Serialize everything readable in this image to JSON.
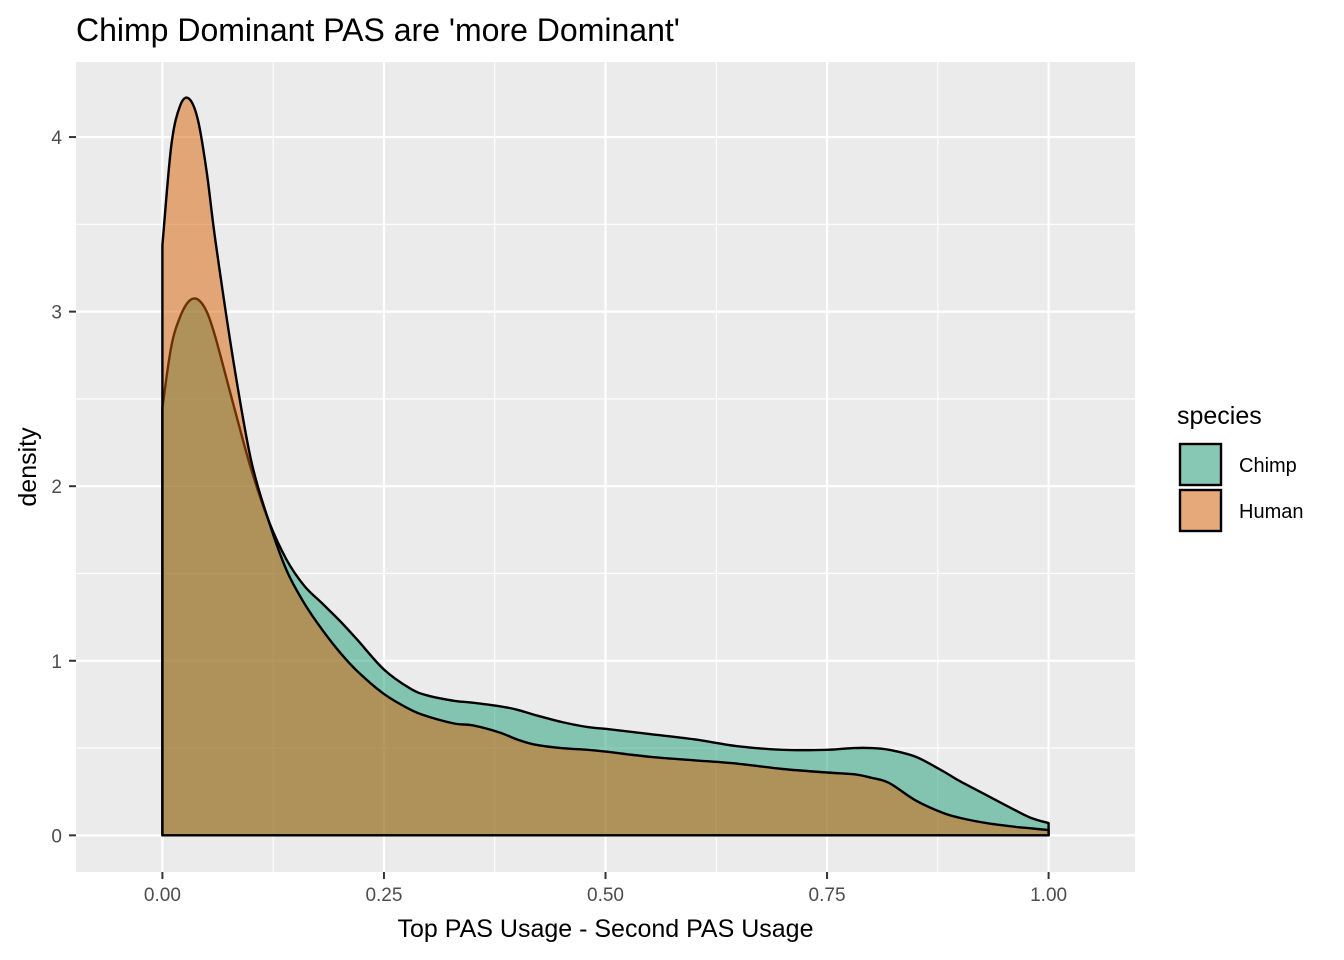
{
  "chart_data": {
    "type": "area",
    "title": "Chimp Dominant PAS are 'more Dominant'",
    "xlabel": "Top PAS Usage - Second PAS Usage",
    "ylabel": "density",
    "xlim": [
      -0.0975,
      1.0975
    ],
    "ylim": [
      -0.21,
      4.43
    ],
    "x_ticks": [
      0,
      0.25,
      0.5,
      0.75,
      1
    ],
    "x_tick_labels": [
      "0.00",
      "0.25",
      "0.50",
      "0.75",
      "1.00"
    ],
    "y_ticks": [
      0,
      1,
      2,
      3,
      4
    ],
    "y_tick_labels": [
      "0",
      "1",
      "2",
      "3",
      "4"
    ],
    "grid": true,
    "legend": {
      "title": "species",
      "position": "right"
    },
    "series": [
      {
        "name": "Chimp",
        "color": "#1b9e77",
        "x": [
          0,
          0.01,
          0.02,
          0.03,
          0.04,
          0.05,
          0.06,
          0.08,
          0.1,
          0.12,
          0.14,
          0.16,
          0.18,
          0.2,
          0.22,
          0.25,
          0.28,
          0.3,
          0.33,
          0.35,
          0.38,
          0.4,
          0.42,
          0.45,
          0.48,
          0.5,
          0.55,
          0.6,
          0.65,
          0.7,
          0.75,
          0.78,
          0.8,
          0.82,
          0.85,
          0.88,
          0.9,
          0.93,
          0.96,
          0.98,
          1.0
        ],
        "y": [
          2.45,
          2.8,
          2.97,
          3.06,
          3.07,
          3.0,
          2.85,
          2.47,
          2.1,
          1.8,
          1.58,
          1.43,
          1.33,
          1.23,
          1.12,
          0.95,
          0.84,
          0.8,
          0.77,
          0.76,
          0.74,
          0.72,
          0.69,
          0.65,
          0.62,
          0.61,
          0.58,
          0.55,
          0.51,
          0.49,
          0.49,
          0.5,
          0.5,
          0.49,
          0.45,
          0.37,
          0.31,
          0.23,
          0.15,
          0.1,
          0.07
        ]
      },
      {
        "name": "Human",
        "color": "#d95f02",
        "x": [
          0,
          0.01,
          0.02,
          0.03,
          0.04,
          0.05,
          0.06,
          0.08,
          0.1,
          0.12,
          0.14,
          0.16,
          0.18,
          0.2,
          0.22,
          0.25,
          0.28,
          0.3,
          0.33,
          0.35,
          0.38,
          0.4,
          0.42,
          0.45,
          0.48,
          0.5,
          0.55,
          0.6,
          0.65,
          0.7,
          0.75,
          0.78,
          0.8,
          0.82,
          0.85,
          0.88,
          0.9,
          0.93,
          0.96,
          0.98,
          1.0
        ],
        "y": [
          3.38,
          3.95,
          4.18,
          4.22,
          4.1,
          3.8,
          3.4,
          2.72,
          2.15,
          1.8,
          1.52,
          1.33,
          1.18,
          1.05,
          0.94,
          0.81,
          0.72,
          0.68,
          0.64,
          0.63,
          0.59,
          0.55,
          0.52,
          0.5,
          0.49,
          0.48,
          0.45,
          0.43,
          0.41,
          0.38,
          0.36,
          0.35,
          0.33,
          0.3,
          0.2,
          0.13,
          0.1,
          0.07,
          0.05,
          0.04,
          0.03
        ]
      }
    ]
  }
}
